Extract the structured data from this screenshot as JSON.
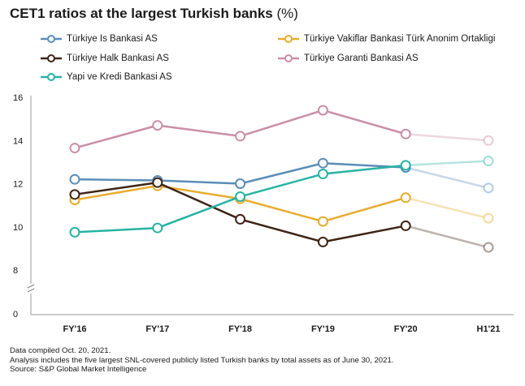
{
  "title": "CET1 ratios at the largest Turkish banks",
  "title_unit": "(%)",
  "chart_data": {
    "type": "line",
    "title": "CET1 ratios at the largest Turkish banks (%)",
    "categories": [
      "FY'16",
      "FY'17",
      "FY'18",
      "FY'19",
      "FY'20",
      "H1'21"
    ],
    "y_ticks": [
      "16",
      "14",
      "12",
      "10",
      "8",
      "0"
    ],
    "ylim": [
      8,
      16
    ],
    "axis_break": true,
    "grid": false,
    "legend_position": "top",
    "series": [
      {
        "name": "Türkiye Is Bankasi AS",
        "color": "#5b8db8",
        "values": [
          12.2,
          12.15,
          12.0,
          12.95,
          12.75,
          11.8
        ]
      },
      {
        "name": "Türkiye Vakiflar Bankasi Türk Anonim Ortakligi",
        "color": "#e8ac2e",
        "values": [
          11.25,
          11.9,
          11.3,
          10.25,
          11.35,
          10.4
        ]
      },
      {
        "name": "Türkiye Halk Bankasi AS",
        "color": "#3d2415",
        "values": [
          11.5,
          12.05,
          10.35,
          9.3,
          10.05,
          9.05
        ]
      },
      {
        "name": "Türkiye Garanti Bankasi AS",
        "color": "#c98fa6",
        "values": [
          13.65,
          14.7,
          14.2,
          15.4,
          14.3,
          14.0
        ]
      },
      {
        "name": "Yapi ve Kredi Bankasi AS",
        "color": "#27b3a3",
        "values": [
          9.75,
          9.95,
          11.4,
          12.45,
          12.85,
          13.05
        ]
      }
    ]
  },
  "notes": [
    "Data compiled Oct. 20, 2021.",
    "Analysis includes the five largest SNL-covered publicly listed Turkish banks by total assets as of June 30, 2021.",
    "Source: S&P Global Market Intelligence"
  ]
}
